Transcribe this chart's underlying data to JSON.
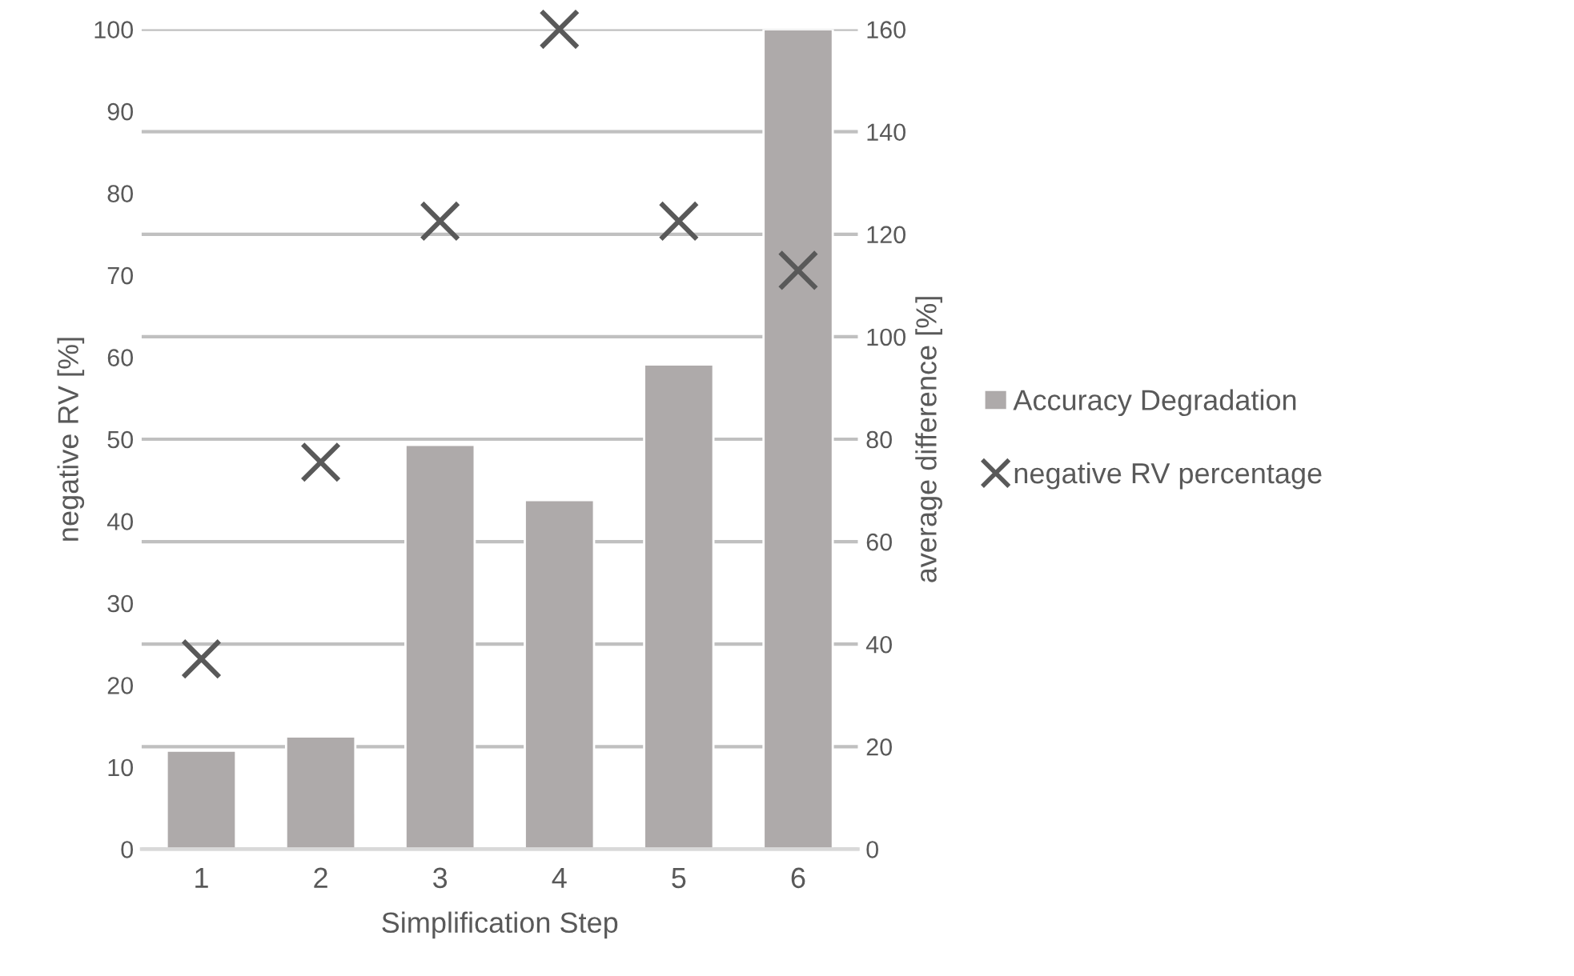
{
  "chart_data": {
    "type": "bar",
    "xlabel": "Simplification Step",
    "ylabel": "negative RV [%]",
    "y2label": "average difference [%]",
    "categories": [
      "1",
      "2",
      "3",
      "4",
      "5",
      "6"
    ],
    "series": [
      {
        "name": "Accuracy Degradation",
        "axis": "y2",
        "color": "#aeaaaa",
        "values": [
          19.2,
          22.0,
          78.9,
          68.1,
          94.6,
          160
        ]
      },
      {
        "name": "negative RV percentage",
        "type": "scatter",
        "marker": "cross",
        "color": "#595959",
        "values": [
          23.2,
          47.2,
          76.6,
          100,
          76.6,
          70.6
        ]
      }
    ],
    "ylim": [
      0,
      100
    ],
    "yticks": [
      0,
      10,
      20,
      30,
      40,
      50,
      60,
      70,
      80,
      90,
      100
    ],
    "y2lim": [
      0,
      160
    ],
    "y2ticks": [
      0,
      20,
      40,
      60,
      80,
      100,
      120,
      140,
      160
    ],
    "grid": true,
    "legend": "right"
  }
}
